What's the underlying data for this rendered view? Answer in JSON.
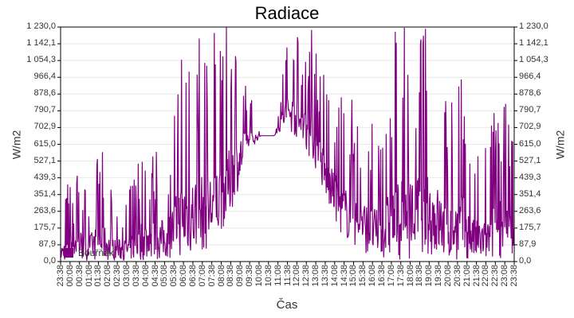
{
  "chart_data": {
    "type": "line",
    "title": "Radiace",
    "xlabel": "Čas",
    "ylabel": "W/m2",
    "ylabel_right": "W/m2",
    "ylim": [
      0,
      1230
    ],
    "grid": true,
    "legend_position": "bottom-left inside",
    "y_ticks": [
      "1 230,0",
      "1 142,1",
      "1 054,3",
      "966,4",
      "878,6",
      "790,7",
      "702,9",
      "615,0",
      "527,1",
      "439,3",
      "351,4",
      "263,6",
      "175,7",
      "87,9",
      "0,0"
    ],
    "x_ticks": [
      "23:38",
      "00:08",
      "00:38",
      "01:08",
      "01:38",
      "02:08",
      "02:38",
      "03:08",
      "03:38",
      "04:08",
      "04:38",
      "05:08",
      "05:38",
      "06:08",
      "06:38",
      "07:08",
      "07:38",
      "08:08",
      "08:38",
      "09:08",
      "09:38",
      "10:08",
      "10:38",
      "11:08",
      "11:38",
      "12:08",
      "12:38",
      "13:08",
      "13:38",
      "14:08",
      "14:38",
      "15:08",
      "15:38",
      "16:08",
      "16:38",
      "17:08",
      "17:38",
      "18:08",
      "18:38",
      "19:08",
      "19:38",
      "20:08",
      "20:38",
      "21:08",
      "21:38",
      "22:08",
      "22:38",
      "23:08",
      "23:38"
    ],
    "series": [
      {
        "name": "Bouřňák",
        "color": "#800080",
        "envelope_note": "approximate hourly envelope: [time, baseline, typical spike max]",
        "envelope": [
          [
            "23:38",
            5,
            210
          ],
          [
            "00:38",
            5,
            615
          ],
          [
            "01:38",
            5,
            350
          ],
          [
            "02:38",
            5,
            615
          ],
          [
            "03:38",
            5,
            330
          ],
          [
            "04:38",
            5,
            330
          ],
          [
            "05:38",
            5,
            615
          ],
          [
            "06:38",
            5,
            615
          ],
          [
            "07:38",
            15,
            615
          ],
          [
            "08:08",
            25,
            1160
          ],
          [
            "08:38",
            40,
            1230
          ],
          [
            "09:08",
            60,
            1230
          ],
          [
            "09:38",
            150,
            1230
          ],
          [
            "10:08",
            300,
            1230
          ],
          [
            "10:38",
            560,
            950
          ],
          [
            "11:08",
            660,
            660
          ],
          [
            "12:08",
            660,
            660
          ],
          [
            "12:38",
            700,
            1230
          ],
          [
            "13:08",
            620,
            1230
          ],
          [
            "13:38",
            500,
            1230
          ],
          [
            "14:08",
            300,
            950
          ],
          [
            "14:38",
            150,
            900
          ],
          [
            "15:08",
            80,
            850
          ],
          [
            "15:38",
            40,
            800
          ],
          [
            "16:08",
            20,
            700
          ],
          [
            "16:38",
            10,
            1230
          ],
          [
            "17:38",
            10,
            1230
          ],
          [
            "18:08",
            50,
            1230
          ],
          [
            "18:38",
            20,
            1230
          ],
          [
            "19:08",
            10,
            800
          ],
          [
            "19:38",
            5,
            1050
          ],
          [
            "20:38",
            5,
            615
          ],
          [
            "21:38",
            5,
            615
          ],
          [
            "22:38",
            5,
            1050
          ],
          [
            "23:38",
            10,
            615
          ]
        ]
      }
    ]
  },
  "legend": {
    "label": "Bouřňák",
    "color": "#800080"
  },
  "colors": {
    "series": "#800080",
    "grid": "#e8e8e8",
    "axis": "#000000"
  }
}
